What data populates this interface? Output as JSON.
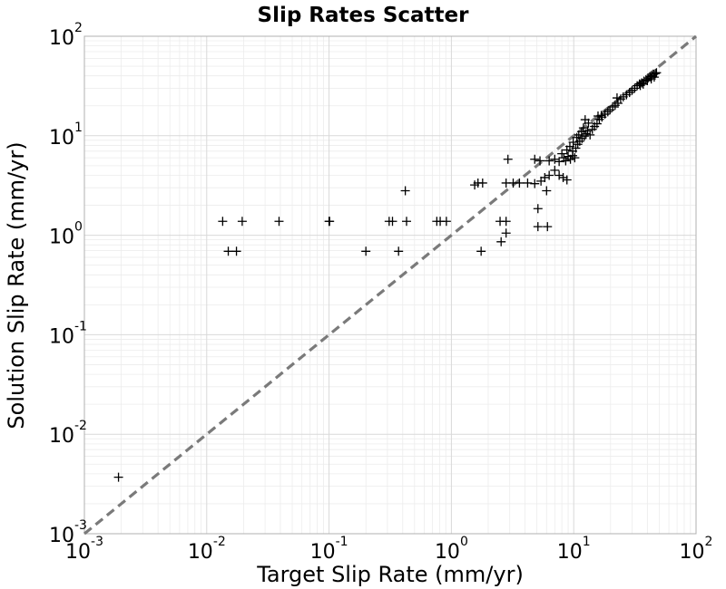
{
  "chart_data": {
    "type": "scatter",
    "title": "Slip Rates Scatter",
    "xlabel": "Target Slip Rate (mm/yr)",
    "ylabel": "Solution Slip Rate (mm/yr)",
    "xscale": "log",
    "yscale": "log",
    "xlim": [
      0.001,
      100
    ],
    "ylim": [
      0.001,
      100
    ],
    "grid": true,
    "marker": "plus",
    "marker_color": "#000000",
    "reference_line": {
      "style": "dashed",
      "color": "#7a7a7a",
      "from": [
        0.001,
        0.001
      ],
      "to": [
        100,
        100
      ]
    },
    "x_ticks": [
      {
        "base": "10",
        "exp": "-3"
      },
      {
        "base": "10",
        "exp": "-2"
      },
      {
        "base": "10",
        "exp": "-1"
      },
      {
        "base": "10",
        "exp": "0"
      },
      {
        "base": "10",
        "exp": "1"
      },
      {
        "base": "10",
        "exp": "2"
      }
    ],
    "y_ticks": [
      {
        "base": "10",
        "exp": "-3"
      },
      {
        "base": "10",
        "exp": "-2"
      },
      {
        "base": "10",
        "exp": "-1"
      },
      {
        "base": "10",
        "exp": "0"
      },
      {
        "base": "10",
        "exp": "1"
      },
      {
        "base": "10",
        "exp": "2"
      }
    ],
    "points": [
      {
        "x": 0.0019,
        "y": 0.0037
      },
      {
        "x": 0.0135,
        "y": 1.38
      },
      {
        "x": 0.0195,
        "y": 1.38
      },
      {
        "x": 0.039,
        "y": 1.38
      },
      {
        "x": 0.1,
        "y": 1.38
      },
      {
        "x": 0.101,
        "y": 1.38
      },
      {
        "x": 0.31,
        "y": 1.38
      },
      {
        "x": 0.33,
        "y": 1.38
      },
      {
        "x": 0.43,
        "y": 1.38
      },
      {
        "x": 0.76,
        "y": 1.38
      },
      {
        "x": 0.81,
        "y": 1.38
      },
      {
        "x": 0.91,
        "y": 1.38
      },
      {
        "x": 2.5,
        "y": 1.38
      },
      {
        "x": 2.8,
        "y": 1.38
      },
      {
        "x": 0.015,
        "y": 0.69
      },
      {
        "x": 0.0175,
        "y": 0.69
      },
      {
        "x": 0.2,
        "y": 0.69
      },
      {
        "x": 0.37,
        "y": 0.69
      },
      {
        "x": 1.75,
        "y": 0.69
      },
      {
        "x": 0.42,
        "y": 2.8
      },
      {
        "x": 1.55,
        "y": 3.2
      },
      {
        "x": 1.65,
        "y": 3.35
      },
      {
        "x": 1.8,
        "y": 3.35
      },
      {
        "x": 2.8,
        "y": 3.35
      },
      {
        "x": 3.2,
        "y": 3.35
      },
      {
        "x": 3.6,
        "y": 3.35
      },
      {
        "x": 4.2,
        "y": 3.35
      },
      {
        "x": 4.8,
        "y": 3.3
      },
      {
        "x": 5.4,
        "y": 3.5
      },
      {
        "x": 5.8,
        "y": 3.8
      },
      {
        "x": 6.3,
        "y": 4.0
      },
      {
        "x": 7.0,
        "y": 4.5
      },
      {
        "x": 7.6,
        "y": 4.0
      },
      {
        "x": 8.2,
        "y": 3.8
      },
      {
        "x": 8.8,
        "y": 3.6
      },
      {
        "x": 6.0,
        "y": 2.8
      },
      {
        "x": 2.9,
        "y": 5.8
      },
      {
        "x": 4.8,
        "y": 5.8
      },
      {
        "x": 5.1,
        "y": 1.85
      },
      {
        "x": 5.1,
        "y": 1.22
      },
      {
        "x": 6.1,
        "y": 1.22
      },
      {
        "x": 2.55,
        "y": 0.86
      },
      {
        "x": 2.8,
        "y": 1.05
      },
      {
        "x": 5.3,
        "y": 5.6
      },
      {
        "x": 6.3,
        "y": 5.6
      },
      {
        "x": 7.0,
        "y": 5.8
      },
      {
        "x": 7.6,
        "y": 5.5
      },
      {
        "x": 8.0,
        "y": 6.6
      },
      {
        "x": 8.3,
        "y": 6.0
      },
      {
        "x": 8.6,
        "y": 5.6
      },
      {
        "x": 9.0,
        "y": 6.2
      },
      {
        "x": 9.4,
        "y": 5.8
      },
      {
        "x": 9.8,
        "y": 6.3
      },
      {
        "x": 10.2,
        "y": 6.0
      },
      {
        "x": 8.8,
        "y": 7.2
      },
      {
        "x": 9.3,
        "y": 7.8
      },
      {
        "x": 9.8,
        "y": 7.0
      },
      {
        "x": 10.4,
        "y": 7.5
      },
      {
        "x": 10.8,
        "y": 8.2
      },
      {
        "x": 11.2,
        "y": 8.8
      },
      {
        "x": 11.7,
        "y": 9.4
      },
      {
        "x": 12.2,
        "y": 9.9
      },
      {
        "x": 12.6,
        "y": 10.5
      },
      {
        "x": 13.0,
        "y": 11.2
      },
      {
        "x": 13.6,
        "y": 10.2
      },
      {
        "x": 14.2,
        "y": 11.6
      },
      {
        "x": 9.9,
        "y": 8.6
      },
      {
        "x": 10.6,
        "y": 9.6
      },
      {
        "x": 11.0,
        "y": 10.2
      },
      {
        "x": 11.6,
        "y": 11.0
      },
      {
        "x": 12.0,
        "y": 12.0
      },
      {
        "x": 12.4,
        "y": 14.5
      },
      {
        "x": 13.2,
        "y": 13.4
      },
      {
        "x": 14.8,
        "y": 12.4
      },
      {
        "x": 15.5,
        "y": 13.2
      },
      {
        "x": 16.2,
        "y": 14.6
      },
      {
        "x": 17.0,
        "y": 15.4
      },
      {
        "x": 18.0,
        "y": 16.5
      },
      {
        "x": 19.0,
        "y": 17.4
      },
      {
        "x": 19.8,
        "y": 18.2
      },
      {
        "x": 20.8,
        "y": 19.5
      },
      {
        "x": 21.8,
        "y": 20.2
      },
      {
        "x": 23.0,
        "y": 21.2
      },
      {
        "x": 24.2,
        "y": 23.4
      },
      {
        "x": 25.4,
        "y": 24.6
      },
      {
        "x": 22.6,
        "y": 24.0
      },
      {
        "x": 27.0,
        "y": 25.8
      },
      {
        "x": 28.6,
        "y": 27.2
      },
      {
        "x": 30.0,
        "y": 28.6
      },
      {
        "x": 31.5,
        "y": 30.0
      },
      {
        "x": 33.0,
        "y": 31.8
      },
      {
        "x": 34.5,
        "y": 33.2
      },
      {
        "x": 36.0,
        "y": 34.0
      },
      {
        "x": 37.5,
        "y": 35.4
      },
      {
        "x": 39.0,
        "y": 36.6
      },
      {
        "x": 40.5,
        "y": 38.0
      },
      {
        "x": 42.0,
        "y": 39.2
      },
      {
        "x": 43.5,
        "y": 40.0
      },
      {
        "x": 45.0,
        "y": 41.5
      },
      {
        "x": 46.5,
        "y": 42.2
      },
      {
        "x": 47.5,
        "y": 43.0
      },
      {
        "x": 45.5,
        "y": 38.8
      },
      {
        "x": 43.0,
        "y": 37.2
      },
      {
        "x": 40.0,
        "y": 35.8
      },
      {
        "x": 37.0,
        "y": 33.0
      },
      {
        "x": 35.0,
        "y": 32.0
      },
      {
        "x": 15.8,
        "y": 15.8
      },
      {
        "x": 16.8,
        "y": 16.0
      }
    ]
  }
}
